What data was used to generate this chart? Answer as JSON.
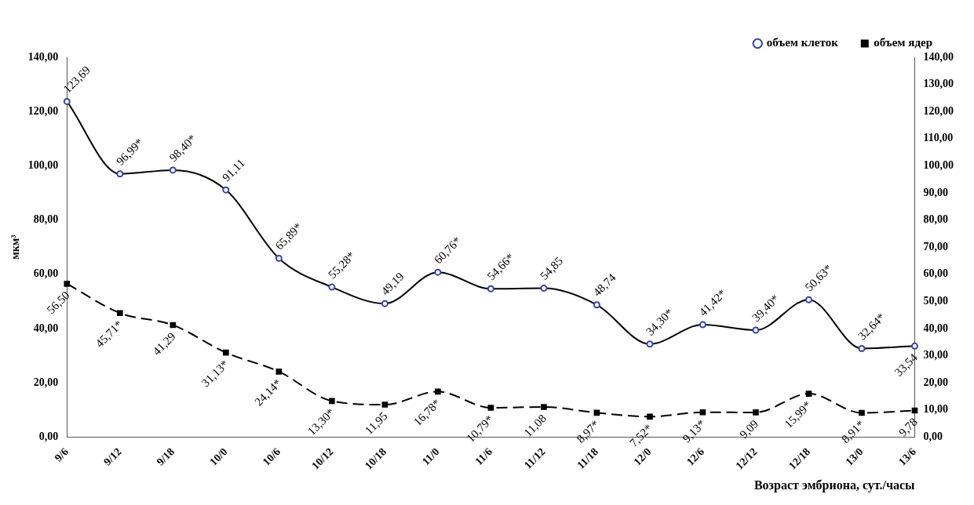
{
  "chart_data": {
    "type": "line",
    "xlabel": "Возраст эмбриона, сут./часы",
    "ylabel": "мкм³",
    "legend": "top right",
    "grid": false,
    "categories": [
      "9/6",
      "9/12",
      "9/18",
      "10/0",
      "10/6",
      "10/12",
      "10/18",
      "11/0",
      "11/6",
      "11/12",
      "11/18",
      "12/0",
      "12/6",
      "12/12",
      "12/18",
      "13/0",
      "13/6"
    ],
    "series": [
      {
        "name": "объем клеток",
        "color": "#000000",
        "marker": "circle",
        "line_style": "solid",
        "values": [
          123.69,
          96.99,
          98.4,
          91.11,
          65.89,
          55.28,
          49.19,
          60.76,
          54.66,
          54.85,
          48.74,
          34.3,
          41.42,
          39.4,
          50.63,
          32.64,
          33.54
        ],
        "value_labels": [
          "123,69",
          "96,99*",
          "98,40*",
          "91,11",
          "65,89*",
          "55,28*",
          "49,19",
          "60,76*",
          "54,66*",
          "54,85",
          "48,74",
          "34,30*",
          "41,42*",
          "39,40*",
          "50,63*",
          "32,64*",
          "33,54"
        ]
      },
      {
        "name": "объем ядер",
        "color": "#000000",
        "marker": "square",
        "line_style": "dashed",
        "values": [
          56.5,
          45.71,
          41.29,
          31.13,
          24.14,
          13.3,
          11.95,
          16.78,
          10.79,
          11.08,
          8.97,
          7.52,
          9.13,
          9.09,
          15.99,
          8.91,
          9.78
        ],
        "value_labels": [
          "56,50",
          "45,71*",
          "41,29",
          "31,13*",
          "24,14*",
          "13,30*",
          "11,95",
          "16,78*",
          "10,79*",
          "11,08",
          "8,97*",
          "7,52*",
          "9,13*",
          "9,09",
          "15,99*",
          "8,91*",
          "9,78"
        ]
      }
    ],
    "ylim": [
      0,
      140
    ],
    "yticks": [
      {
        "value": 0,
        "label": "0,00"
      },
      {
        "value": 20,
        "label": "20,00"
      },
      {
        "value": 40,
        "label": "40,00"
      },
      {
        "value": 60,
        "label": "60,00"
      },
      {
        "value": 80,
        "label": "80,00"
      },
      {
        "value": 100,
        "label": "100,00"
      },
      {
        "value": 120,
        "label": "120,00"
      },
      {
        "value": 140,
        "label": "140,00"
      }
    ],
    "y2lim": [
      0,
      140
    ],
    "y2ticks": [
      {
        "value": 0,
        "label": "0,00"
      },
      {
        "value": 10,
        "label": "10,00"
      },
      {
        "value": 20,
        "label": "20,00"
      },
      {
        "value": 30,
        "label": "30,00"
      },
      {
        "value": 40,
        "label": "40,00"
      },
      {
        "value": 50,
        "label": "50,00"
      },
      {
        "value": 60,
        "label": "60,00"
      },
      {
        "value": 70,
        "label": "70,00"
      },
      {
        "value": 80,
        "label": "80,00"
      },
      {
        "value": 90,
        "label": "90,00"
      },
      {
        "value": 100,
        "label": "100,00"
      },
      {
        "value": 110,
        "label": "110,00"
      },
      {
        "value": 120,
        "label": "120,00"
      },
      {
        "value": 130,
        "label": "130,00"
      },
      {
        "value": 140,
        "label": "140,00"
      }
    ]
  }
}
